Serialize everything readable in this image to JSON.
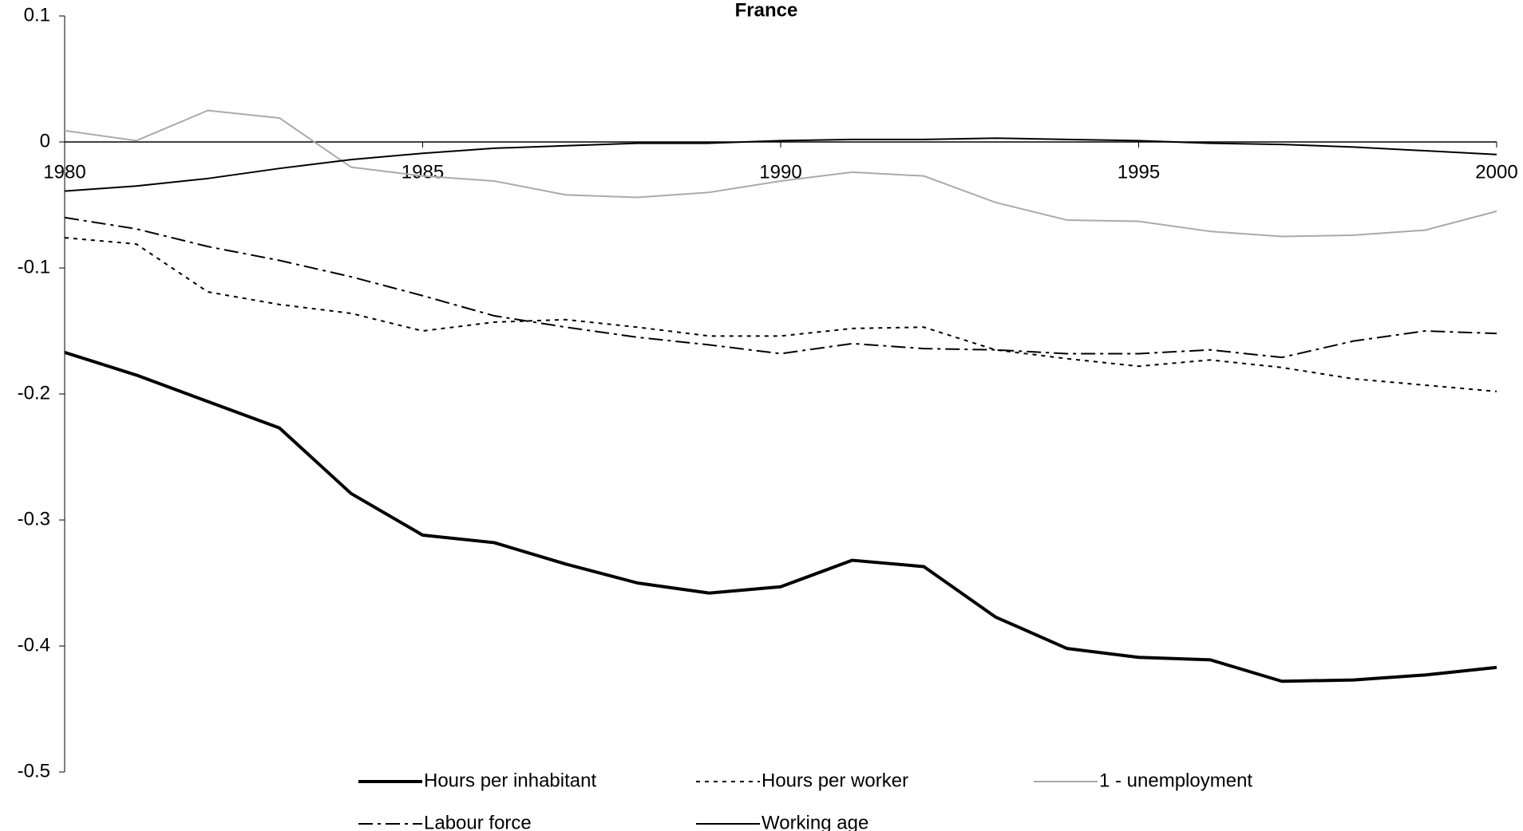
{
  "chart_data": {
    "type": "line",
    "title": "France",
    "x": [
      1980,
      1981,
      1982,
      1983,
      1984,
      1985,
      1986,
      1987,
      1988,
      1989,
      1990,
      1991,
      1992,
      1993,
      1994,
      1995,
      1996,
      1997,
      1998,
      1999,
      2000
    ],
    "xlim": [
      1980,
      2000
    ],
    "xticks": [
      1980,
      1985,
      1990,
      1995,
      2000
    ],
    "ylim": [
      -0.5,
      0.1
    ],
    "yticks": [
      0.1,
      0,
      -0.1,
      -0.2,
      -0.3,
      -0.4,
      -0.5
    ],
    "grid": false,
    "legend": "bottom",
    "series": [
      {
        "name": "Hours per inhabitant",
        "color": "#000000",
        "style": "solid",
        "width": 4,
        "values": [
          -0.167,
          -0.185,
          -0.206,
          -0.227,
          -0.279,
          -0.312,
          -0.318,
          -0.335,
          -0.35,
          -0.358,
          -0.353,
          -0.332,
          -0.337,
          -0.377,
          -0.402,
          -0.409,
          -0.411,
          -0.428,
          -0.427,
          -0.423,
          -0.417
        ]
      },
      {
        "name": "Hours per worker",
        "color": "#000000",
        "style": "dotted",
        "width": 2,
        "values": [
          -0.076,
          -0.081,
          -0.119,
          -0.129,
          -0.136,
          -0.15,
          -0.143,
          -0.141,
          -0.147,
          -0.154,
          -0.154,
          -0.148,
          -0.147,
          -0.165,
          -0.172,
          -0.178,
          -0.173,
          -0.179,
          -0.188,
          -0.193,
          -0.198
        ]
      },
      {
        "name": "1 - unemployment",
        "color": "#aaaaaa",
        "style": "solid",
        "width": 2,
        "values": [
          0.009,
          0.001,
          0.025,
          0.019,
          -0.02,
          -0.027,
          -0.031,
          -0.042,
          -0.044,
          -0.04,
          -0.031,
          -0.024,
          -0.027,
          -0.048,
          -0.062,
          -0.063,
          -0.071,
          -0.075,
          -0.074,
          -0.07,
          -0.055
        ]
      },
      {
        "name": "Labour force",
        "color": "#000000",
        "style": "dashdot",
        "width": 2,
        "values": [
          -0.06,
          -0.069,
          -0.083,
          -0.094,
          -0.107,
          -0.122,
          -0.138,
          -0.147,
          -0.155,
          -0.161,
          -0.168,
          -0.16,
          -0.164,
          -0.165,
          -0.168,
          -0.168,
          -0.165,
          -0.171,
          -0.158,
          -0.15,
          -0.152
        ]
      },
      {
        "name": "Working age",
        "color": "#000000",
        "style": "solid",
        "width": 2,
        "values": [
          -0.039,
          -0.035,
          -0.029,
          -0.021,
          -0.014,
          -0.009,
          -0.005,
          -0.003,
          -0.001,
          -0.001,
          0.001,
          0.002,
          0.002,
          0.003,
          0.002,
          0.001,
          -0.001,
          -0.002,
          -0.004,
          -0.007,
          -0.01
        ]
      }
    ]
  }
}
